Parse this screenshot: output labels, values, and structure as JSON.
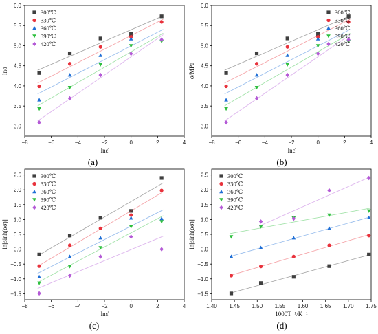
{
  "series_colors": [
    "#3f3f3f",
    "#e8323c",
    "#1f6fd6",
    "#2fbf3f",
    "#b45ad6"
  ],
  "chart_data": [
    {
      "type": "scatter",
      "caption": "(a)",
      "xlabel": "lnε̇",
      "ylabel": "lnσ",
      "xlim": [
        -8,
        4
      ],
      "ylim": [
        2.75,
        6.0
      ],
      "xticks": [
        -8,
        -6,
        -4,
        -2,
        0,
        2,
        4
      ],
      "yticks": [
        3.0,
        3.5,
        4.0,
        4.5,
        5.0,
        5.5,
        6.0
      ],
      "xtick_labels": [
        "−8",
        "−6",
        "−4",
        "−2",
        "0",
        "2",
        "4"
      ],
      "ytick_labels": [
        "3.0",
        "3.5",
        "4.0",
        "4.5",
        "5.0",
        "5.5",
        "6.0"
      ],
      "legend_position": "top-left",
      "fit_lines": true,
      "series": [
        {
          "name": "300℃",
          "marker": "square",
          "x": [
            -6.91,
            -4.61,
            -2.3,
            0,
            2.3
          ],
          "y": [
            4.32,
            4.81,
            5.18,
            5.29,
            5.73
          ]
        },
        {
          "name": "330℃",
          "marker": "circle",
          "x": [
            -6.91,
            -4.61,
            -2.3,
            0,
            2.3
          ],
          "y": [
            3.99,
            4.55,
            4.97,
            5.22,
            5.59
          ]
        },
        {
          "name": "360℃",
          "marker": "triangle-up",
          "x": [
            -6.91,
            -4.61,
            -2.3,
            0,
            2.3
          ],
          "y": [
            3.65,
            4.27,
            4.76,
            5.17,
            5.16
          ]
        },
        {
          "name": "390℃",
          "marker": "triangle-down",
          "x": [
            -6.91,
            -4.61,
            -2.3,
            0,
            2.3
          ],
          "y": [
            3.43,
            3.96,
            4.53,
            5.0,
            5.11
          ]
        },
        {
          "name": "420℃",
          "marker": "diamond",
          "x": [
            -6.91,
            -4.61,
            -2.3,
            0,
            2.3
          ],
          "y": [
            3.09,
            3.69,
            4.27,
            4.8,
            5.15
          ]
        }
      ]
    },
    {
      "type": "scatter",
      "caption": "(b)",
      "xlabel": "lnε̇",
      "ylabel": "σ/MPa",
      "xlim": [
        -8,
        4
      ],
      "ylim": [
        2.75,
        6.0
      ],
      "xticks": [
        -8,
        -6,
        -4,
        -2,
        0,
        2,
        4
      ],
      "yticks": [
        3.0,
        3.5,
        4.0,
        4.5,
        5.0,
        5.5,
        6.0
      ],
      "xtick_labels": [
        "−8",
        "−6",
        "−4",
        "−2",
        "0",
        "2",
        "4"
      ],
      "ytick_labels": [
        "3.0",
        "3.5",
        "4.0",
        "4.5",
        "5.0",
        "5.5",
        "6.0"
      ],
      "legend_position": "top-right",
      "fit_lines": true,
      "series": [
        {
          "name": "300℃",
          "marker": "square",
          "x": [
            -6.91,
            -4.61,
            -2.3,
            0,
            2.3
          ],
          "y": [
            4.32,
            4.81,
            5.18,
            5.29,
            5.73
          ]
        },
        {
          "name": "330℃",
          "marker": "circle",
          "x": [
            -6.91,
            -4.61,
            -2.3,
            0,
            2.3
          ],
          "y": [
            3.99,
            4.55,
            4.97,
            5.22,
            5.59
          ]
        },
        {
          "name": "360℃",
          "marker": "triangle-up",
          "x": [
            -6.91,
            -4.61,
            -2.3,
            0,
            2.3
          ],
          "y": [
            3.65,
            4.27,
            4.76,
            5.17,
            5.16
          ]
        },
        {
          "name": "390℃",
          "marker": "triangle-down",
          "x": [
            -6.91,
            -4.61,
            -2.3,
            0,
            2.3
          ],
          "y": [
            3.43,
            3.96,
            4.53,
            5.0,
            5.11
          ]
        },
        {
          "name": "420℃",
          "marker": "diamond",
          "x": [
            -6.91,
            -4.61,
            -2.3,
            0,
            2.3
          ],
          "y": [
            3.09,
            3.69,
            4.27,
            4.8,
            5.15
          ]
        }
      ]
    },
    {
      "type": "scatter",
      "caption": "(c)",
      "xlabel": "lnε̇",
      "ylabel": "ln[sinh(ασ)]",
      "xlim": [
        -8,
        4
      ],
      "ylim": [
        -1.7,
        2.7
      ],
      "xticks": [
        -8,
        -6,
        -4,
        -2,
        0,
        2,
        4
      ],
      "yticks": [
        -1.5,
        -1.0,
        -0.5,
        0.0,
        0.5,
        1.0,
        1.5,
        2.0,
        2.5
      ],
      "xtick_labels": [
        "−8",
        "−6",
        "−4",
        "−2",
        "0",
        "2",
        "4"
      ],
      "ytick_labels": [
        "−1.5",
        "−1.0",
        "−0.5",
        "0.0",
        "0.5",
        "1.0",
        "1.5",
        "2.0",
        "2.5"
      ],
      "legend_position": "top-left",
      "fit_lines": true,
      "series": [
        {
          "name": "300℃",
          "marker": "square",
          "x": [
            -6.91,
            -4.61,
            -2.3,
            0,
            2.3
          ],
          "y": [
            -0.18,
            0.46,
            1.06,
            1.29,
            2.4
          ]
        },
        {
          "name": "330℃",
          "marker": "circle",
          "x": [
            -6.91,
            -4.61,
            -2.3,
            0,
            2.3
          ],
          "y": [
            -0.57,
            0.13,
            0.7,
            1.15,
            1.98
          ]
        },
        {
          "name": "360℃",
          "marker": "triangle-up",
          "x": [
            -6.91,
            -4.61,
            -2.3,
            0,
            2.3
          ],
          "y": [
            -0.93,
            -0.25,
            0.38,
            1.05,
            1.03
          ]
        },
        {
          "name": "390℃",
          "marker": "triangle-down",
          "x": [
            -6.91,
            -4.61,
            -2.3,
            0,
            2.3
          ],
          "y": [
            -1.14,
            -0.58,
            0.05,
            0.76,
            0.93
          ]
        },
        {
          "name": "420℃",
          "marker": "diamond",
          "x": [
            -6.91,
            -4.61,
            -2.3,
            0,
            2.3
          ],
          "y": [
            -1.49,
            -0.89,
            -0.25,
            0.42,
            0.0
          ]
        }
      ]
    },
    {
      "type": "scatter",
      "caption": "(d)",
      "xlabel": "1000T⁻¹/K⁻¹",
      "ylabel": "ln[sinh(ασ)]",
      "xlim": [
        1.4,
        1.75
      ],
      "ylim": [
        -1.7,
        2.7
      ],
      "xticks": [
        1.4,
        1.45,
        1.5,
        1.55,
        1.6,
        1.65,
        1.7,
        1.75
      ],
      "yticks": [
        -1.5,
        -1.0,
        -0.5,
        0.0,
        0.5,
        1.0,
        1.5,
        2.0,
        2.5
      ],
      "xtick_labels": [
        "1.40",
        "1.45",
        "1.50",
        "1.55",
        "1.60",
        "1.65",
        "1.70",
        "1.75"
      ],
      "ytick_labels": [
        "−1.5",
        "−1.0",
        "−0.5",
        "0.0",
        "0.5",
        "1.0",
        "1.5",
        "2.0",
        "2.5"
      ],
      "legend_position": "top-left",
      "fit_lines": true,
      "series": [
        {
          "name": "300℃",
          "marker": "square",
          "x": [
            1.443,
            1.508,
            1.58,
            1.658,
            1.745
          ],
          "y": [
            -1.49,
            -1.14,
            -0.93,
            -0.57,
            -0.18
          ]
        },
        {
          "name": "330℃",
          "marker": "circle",
          "x": [
            1.443,
            1.508,
            1.58,
            1.658,
            1.745
          ],
          "y": [
            -0.89,
            -0.58,
            -0.25,
            0.13,
            0.46
          ]
        },
        {
          "name": "360℃",
          "marker": "triangle-up",
          "x": [
            1.443,
            1.508,
            1.58,
            1.658,
            1.745
          ],
          "y": [
            -0.25,
            0.05,
            0.38,
            0.7,
            1.06
          ]
        },
        {
          "name": "390℃",
          "marker": "triangle-down",
          "x": [
            1.443,
            1.508,
            1.58,
            1.658,
            1.745
          ],
          "y": [
            0.42,
            0.76,
            1.05,
            1.15,
            1.29
          ]
        },
        {
          "name": "420℃",
          "marker": "diamond",
          "x": [
            1.508,
            1.58,
            1.658,
            1.745
          ],
          "y": [
            0.93,
            1.03,
            1.98,
            2.4
          ]
        }
      ]
    }
  ]
}
